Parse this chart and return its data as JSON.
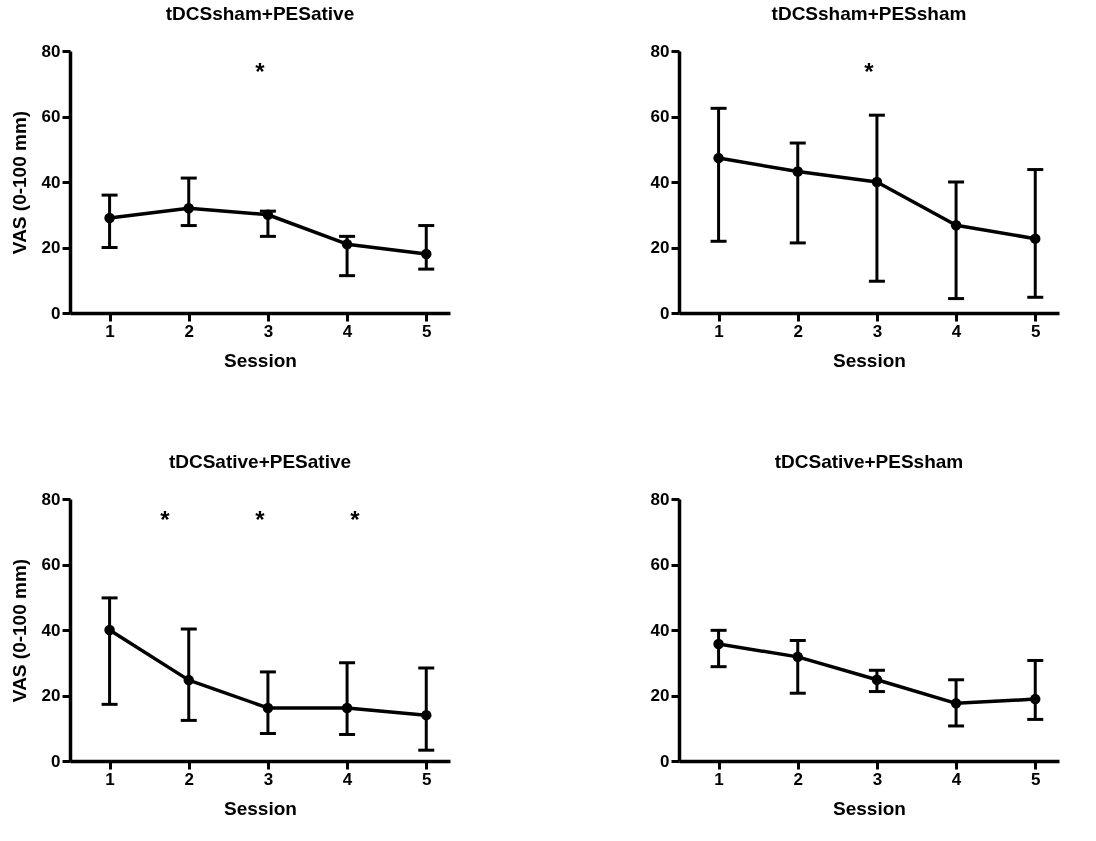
{
  "chart_data": [
    {
      "type": "line",
      "title": "tDCSsham+PESative",
      "xlabel": "Session",
      "ylabel": "VAS (0-100 mm)",
      "x": [
        1,
        2,
        3,
        4,
        5
      ],
      "xlim": [
        0.5,
        5.3
      ],
      "xticks": [
        1,
        2,
        3,
        4,
        5
      ],
      "ylim": [
        0,
        80
      ],
      "yticks": [
        0,
        20,
        40,
        60,
        80
      ],
      "marker": "circle",
      "series": [
        {
          "color": "#000000",
          "values": [
            29,
            32,
            30,
            21,
            18
          ],
          "errors": [
            [
              20,
              36
            ],
            [
              26.7,
              41.2
            ],
            [
              23.4,
              31.1
            ],
            [
              11.4,
              23.4
            ],
            [
              13.4,
              26.7
            ]
          ]
        }
      ],
      "annotations": [
        "*"
      ]
    },
    {
      "type": "line",
      "title": "tDCSsham+PESsham",
      "xlabel": "Session",
      "x": [
        1,
        2,
        3,
        4,
        5
      ],
      "xlim": [
        0.5,
        5.3
      ],
      "xticks": [
        1,
        2,
        3,
        4,
        5
      ],
      "ylim": [
        0,
        80
      ],
      "yticks": [
        0,
        20,
        40,
        60,
        80
      ],
      "marker": "circle",
      "series": [
        {
          "color": "#000000",
          "values": [
            47.3,
            43.2,
            40,
            26.8,
            22.7
          ],
          "errors": [
            [
              21.9,
              62.5
            ],
            [
              21.4,
              51.9
            ],
            [
              9.7,
              60.4
            ],
            [
              4.4,
              40
            ],
            [
              4.8,
              43.8
            ]
          ]
        }
      ],
      "annotations": [
        "*"
      ]
    },
    {
      "type": "line",
      "title": "tDCSative+PESative",
      "xlabel": "Session",
      "ylabel": "VAS (0-100 mm)",
      "x": [
        1,
        2,
        3,
        4,
        5
      ],
      "xlim": [
        0.5,
        5.3
      ],
      "xticks": [
        1,
        2,
        3,
        4,
        5
      ],
      "ylim": [
        0,
        80
      ],
      "yticks": [
        0,
        20,
        40,
        60,
        80
      ],
      "marker": "circle",
      "series": [
        {
          "color": "#000000",
          "values": [
            40,
            24.7,
            16.2,
            16.2,
            14
          ],
          "errors": [
            [
              17.3,
              49.8
            ],
            [
              12.4,
              40.3
            ],
            [
              8.4,
              27.2
            ],
            [
              8.1,
              30
            ],
            [
              3.3,
              28.4
            ]
          ]
        }
      ],
      "annotations": [
        "*",
        "*",
        "*"
      ]
    },
    {
      "type": "line",
      "title": "tDCSative+PESsham",
      "xlabel": "Session",
      "x": [
        1,
        2,
        3,
        4,
        5
      ],
      "xlim": [
        0.5,
        5.3
      ],
      "xticks": [
        1,
        2,
        3,
        4,
        5
      ],
      "ylim": [
        0,
        80
      ],
      "yticks": [
        0,
        20,
        40,
        60,
        80
      ],
      "marker": "circle",
      "series": [
        {
          "color": "#000000",
          "values": [
            35.7,
            31.8,
            24.8,
            17.6,
            18.9
          ],
          "errors": [
            [
              28.8,
              39.9
            ],
            [
              20.7,
              36.8
            ],
            [
              21.2,
              27.7
            ],
            [
              10.7,
              24.8
            ],
            [
              12.7,
              30.7
            ]
          ]
        }
      ]
    }
  ]
}
